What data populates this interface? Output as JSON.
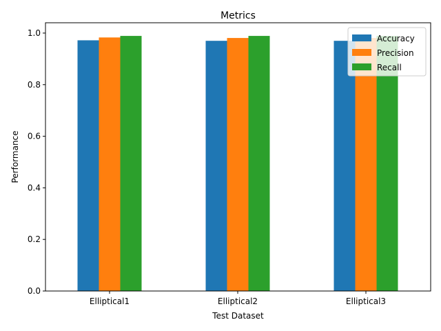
{
  "chart_data": {
    "type": "bar",
    "title": "Metrics",
    "xlabel": "Test Dataset",
    "ylabel": "Performance",
    "categories": [
      "Elliptical1",
      "Elliptical2",
      "Elliptical3"
    ],
    "series": [
      {
        "name": "Accuracy",
        "color": "#1f77b4",
        "values": [
          0.972,
          0.97,
          0.97
        ]
      },
      {
        "name": "Precision",
        "color": "#ff7f0e",
        "values": [
          0.983,
          0.981,
          0.981
        ]
      },
      {
        "name": "Recall",
        "color": "#2ca02c",
        "values": [
          0.989,
          0.989,
          0.989
        ]
      }
    ],
    "ylim": [
      0,
      1.04
    ],
    "yticks": [
      0.0,
      0.2,
      0.4,
      0.6,
      0.8,
      1.0
    ],
    "ytick_labels": [
      "0.0",
      "0.2",
      "0.4",
      "0.6",
      "0.8",
      "1.0"
    ],
    "grid": false,
    "legend_position": "top-right"
  }
}
